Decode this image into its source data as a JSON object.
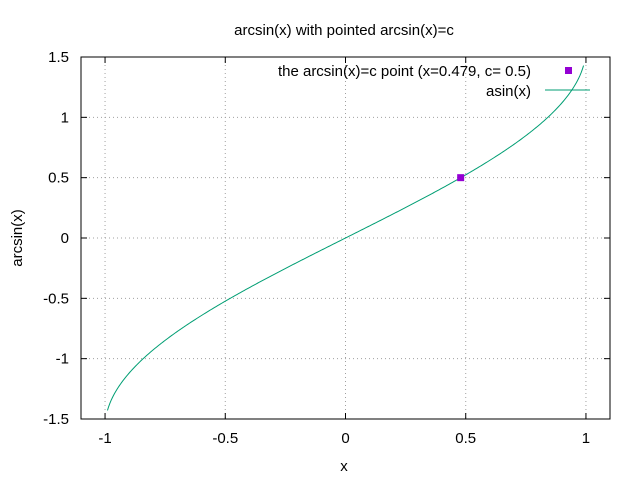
{
  "chart_data": {
    "type": "line",
    "title": "arcsin(x) with pointed arcsin(x)=c",
    "xlabel": "x",
    "ylabel": "arcsin(x)",
    "xlim": [
      -1.1,
      1.1
    ],
    "ylim": [
      -1.5,
      1.5
    ],
    "x_ticks": [
      -1,
      -0.5,
      0,
      0.5,
      1
    ],
    "x_tick_labels": [
      "-1",
      "-0.5",
      "0",
      "0.5",
      "1"
    ],
    "y_ticks": [
      -1.5,
      -1,
      -0.5,
      0,
      0.5,
      1,
      1.5
    ],
    "y_tick_labels": [
      "-1.5",
      "-1",
      "-0.5",
      "0",
      "0.5",
      "1",
      "1.5"
    ],
    "grid": true,
    "legend_position": "top-right",
    "series": [
      {
        "name": "the arcsin(x)=c point (x=0.479, c= 0.5)",
        "kind": "point",
        "color": "#9400d3",
        "x": [
          0.479
        ],
        "y": [
          0.5
        ]
      },
      {
        "name": "asin(x)",
        "kind": "line",
        "color": "#009e73",
        "function": "asin",
        "x_range": [
          -0.99,
          0.99
        ]
      }
    ]
  }
}
